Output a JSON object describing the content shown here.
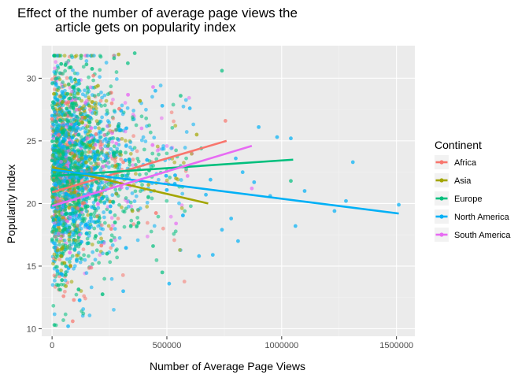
{
  "chart_data": {
    "type": "scatter",
    "title_lines": [
      "Effect of the number of average page views the",
      "article gets on popularity index"
    ],
    "xlabel": "Number of Average Page Views",
    "ylabel": "Popularity Index",
    "xlim": [
      -45000,
      1580000
    ],
    "ylim": [
      9.4,
      32.6
    ],
    "x_ticks": [
      0,
      500000,
      1000000,
      1500000
    ],
    "x_tick_labels": [
      "0",
      "500000",
      "1000000",
      "1500000"
    ],
    "y_ticks": [
      10,
      15,
      20,
      25,
      30
    ],
    "y_tick_labels": [
      "10",
      "15",
      "20",
      "25",
      "30"
    ],
    "grid": true,
    "legend": {
      "title": "Continent",
      "placement": "right",
      "entries": [
        "Africa",
        "Asia",
        "Europe",
        "North America",
        "South America"
      ]
    },
    "series": [
      {
        "name": "Africa",
        "color": "#F8766D",
        "trend": {
          "x": [
            0,
            760000
          ],
          "y": [
            20.9,
            25.0
          ]
        },
        "extra_points": [
          [
            755000,
            26.6
          ],
          [
            310000,
            23.3
          ],
          [
            180000,
            30.2
          ],
          [
            90000,
            10.6
          ],
          [
            50000,
            12.6
          ],
          [
            95000,
            12.3
          ],
          [
            260000,
            28.0
          ],
          [
            120000,
            27.5
          ],
          [
            60000,
            28.0
          ],
          [
            30000,
            25.5
          ]
        ]
      },
      {
        "name": "Asia",
        "color": "#A3A500",
        "trend": {
          "x": [
            0,
            680000
          ],
          "y": [
            22.9,
            20.0
          ]
        },
        "extra_points": [
          [
            290000,
            31.9
          ],
          [
            630000,
            25.5
          ],
          [
            540000,
            22.0
          ],
          [
            420000,
            21.5
          ],
          [
            45000,
            28.1
          ],
          [
            130000,
            27.6
          ],
          [
            200000,
            29.4
          ],
          [
            350000,
            19.4
          ],
          [
            80000,
            15.0
          ],
          [
            60000,
            13.4
          ]
        ]
      },
      {
        "name": "Europe",
        "color": "#00BF7D",
        "trend": {
          "x": [
            0,
            1050000
          ],
          "y": [
            22.2,
            23.5
          ]
        },
        "extra_points": [
          [
            740000,
            30.6
          ],
          [
            360000,
            32.0
          ],
          [
            330000,
            31.2
          ],
          [
            1040000,
            21.8
          ],
          [
            10000,
            10.3
          ],
          [
            560000,
            28.6
          ],
          [
            480000,
            14.5
          ],
          [
            270000,
            31.6
          ],
          [
            150000,
            31.1
          ],
          [
            100000,
            29.9
          ],
          [
            650000,
            24.4
          ],
          [
            440000,
            16.6
          ]
        ]
      },
      {
        "name": "North America",
        "color": "#00B0F6",
        "trend": {
          "x": [
            0,
            1510000
          ],
          "y": [
            22.7,
            19.2
          ]
        },
        "extra_points": [
          [
            1510000,
            19.9
          ],
          [
            1310000,
            23.3
          ],
          [
            1280000,
            20.2
          ],
          [
            1230000,
            19.4
          ],
          [
            1040000,
            25.2
          ],
          [
            980000,
            25.3
          ],
          [
            1060000,
            18.2
          ],
          [
            1100000,
            21.0
          ],
          [
            900000,
            26.1
          ],
          [
            830000,
            22.5
          ],
          [
            780000,
            18.8
          ],
          [
            700000,
            15.9
          ],
          [
            640000,
            15.8
          ],
          [
            880000,
            21.7
          ],
          [
            950000,
            20.6
          ],
          [
            800000,
            23.6
          ],
          [
            740000,
            17.9
          ],
          [
            690000,
            21.9
          ],
          [
            600000,
            27.6
          ],
          [
            480000,
            27.8
          ],
          [
            450000,
            29.0
          ],
          [
            510000,
            13.6
          ],
          [
            310000,
            13.0
          ],
          [
            70000,
            10.2
          ],
          [
            670000,
            20.7
          ],
          [
            810000,
            17.0
          ]
        ]
      },
      {
        "name": "South America",
        "color": "#E76BF3",
        "trend": {
          "x": [
            0,
            870000
          ],
          "y": [
            19.8,
            24.6
          ]
        },
        "extra_points": [
          [
            870000,
            21.2
          ],
          [
            440000,
            29.3
          ],
          [
            590000,
            22.2
          ],
          [
            390000,
            26.0
          ],
          [
            200000,
            20.0
          ],
          [
            120000,
            17.5
          ],
          [
            340000,
            21.4
          ],
          [
            280000,
            24.8
          ],
          [
            540000,
            18.4
          ],
          [
            60000,
            22.3
          ]
        ]
      }
    ],
    "dense_cluster": {
      "note_free": true,
      "x_range": [
        0,
        420000
      ],
      "y_range": [
        11,
        31
      ]
    }
  }
}
